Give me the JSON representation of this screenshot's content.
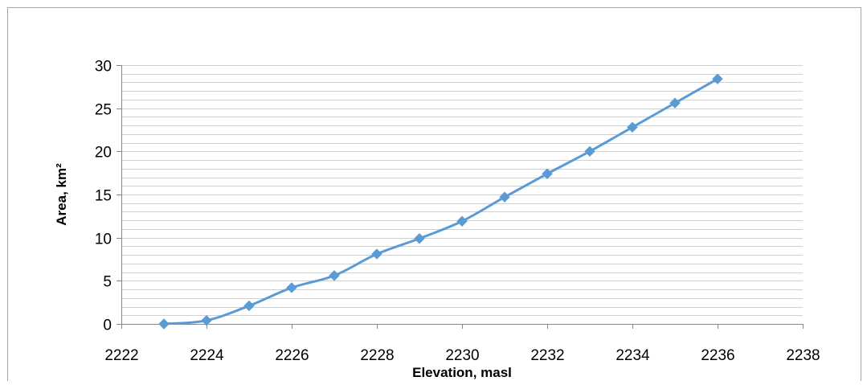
{
  "chart_data": {
    "type": "scatter",
    "title": "",
    "xlabel": "Elevation, masl",
    "ylabel": "Area, km²",
    "xlim": [
      2222,
      2238
    ],
    "ylim": [
      0,
      30
    ],
    "x_ticks": [
      "2222",
      "2224",
      "2226",
      "2228",
      "2230",
      "2232",
      "2234",
      "2236",
      "2238"
    ],
    "y_ticks": [
      "0",
      "5",
      "10",
      "15",
      "20",
      "25",
      "30"
    ],
    "grid": true,
    "legend": false,
    "marker": "diamond",
    "line_style": "smooth",
    "series_color": "#5B9BD5",
    "series": [
      {
        "x": [
          2223,
          2224,
          2225,
          2226,
          2227,
          2228,
          2229,
          2230,
          2231,
          2232,
          2233,
          2234,
          2235,
          2236
        ],
        "y": [
          0.0,
          0.4,
          2.1,
          4.2,
          5.6,
          8.1,
          9.9,
          11.9,
          14.7,
          17.4,
          20.0,
          22.8,
          25.6,
          28.4
        ]
      }
    ]
  }
}
